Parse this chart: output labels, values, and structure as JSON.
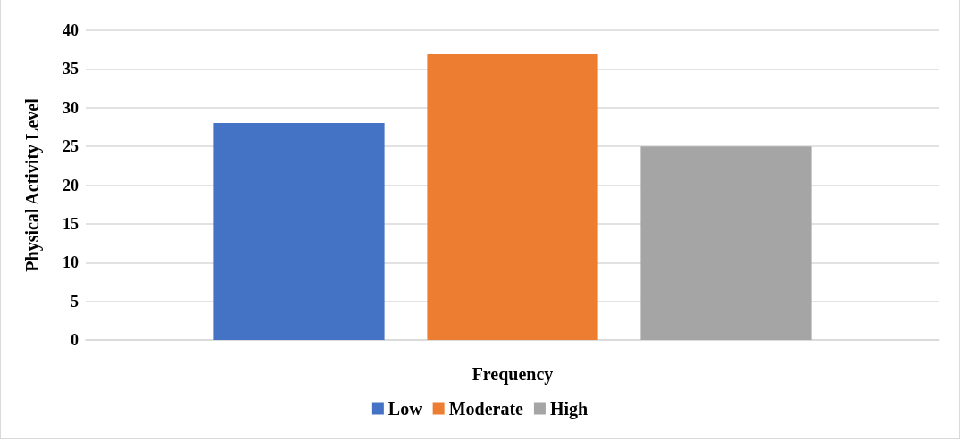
{
  "chart_data": {
    "type": "bar",
    "xlabel": "Frequency",
    "ylabel": "Physical Activity Level",
    "categories": [
      null
    ],
    "series": [
      {
        "name": "Low",
        "color": "#4472c4",
        "values": [
          28
        ]
      },
      {
        "name": "Moderate",
        "color": "#ed7d31",
        "values": [
          37
        ]
      },
      {
        "name": "High",
        "color": "#a5a5a5",
        "values": [
          25
        ]
      }
    ],
    "ylim": [
      0,
      40
    ],
    "yticks": [
      0,
      5,
      10,
      15,
      20,
      25,
      30,
      35,
      40
    ],
    "grid": "y",
    "legend": "bottom"
  }
}
